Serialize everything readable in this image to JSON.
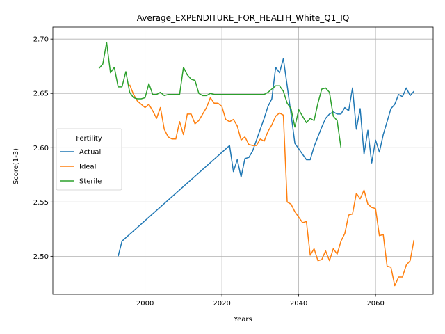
{
  "chart_data": {
    "type": "line",
    "title": "Average_EXPENDITURE_FOR_HEALTH_White_Q1_IQ",
    "xlabel": "Years",
    "ylabel": "Score(1-3)",
    "xlim": [
      1976,
      2075
    ],
    "ylim": [
      2.465,
      2.711
    ],
    "xticks": [
      2000,
      2020,
      2040,
      2060
    ],
    "yticks": [
      2.5,
      2.55,
      2.6,
      2.65,
      2.7
    ],
    "grid": true,
    "legend": {
      "title": "Fertility",
      "placement": "center-left"
    },
    "series": [
      {
        "name": "Actual",
        "color": "#1f77b4",
        "x": [
          1993,
          1994,
          2022,
          2023,
          2024,
          2025,
          2026,
          2027,
          2028,
          2029,
          2030,
          2031,
          2032,
          2033,
          2034,
          2035,
          2036,
          2037,
          2038,
          2039,
          2040,
          2041,
          2042,
          2043,
          2044,
          2045,
          2046,
          2047,
          2048,
          2049,
          2050,
          2051,
          2052,
          2053,
          2054,
          2055,
          2056,
          2057,
          2058,
          2059,
          2060,
          2061,
          2062,
          2063,
          2064,
          2065,
          2066,
          2067,
          2068,
          2069,
          2070
        ],
        "y": [
          2.5,
          2.514,
          2.602,
          2.578,
          2.589,
          2.573,
          2.59,
          2.591,
          2.597,
          2.607,
          2.617,
          2.627,
          2.638,
          2.645,
          2.674,
          2.669,
          2.682,
          2.657,
          2.631,
          2.604,
          2.599,
          2.594,
          2.589,
          2.589,
          2.601,
          2.61,
          2.619,
          2.627,
          2.631,
          2.633,
          2.631,
          2.631,
          2.637,
          2.634,
          2.655,
          2.617,
          2.636,
          2.594,
          2.616,
          2.586,
          2.607,
          2.596,
          2.612,
          2.624,
          2.636,
          2.64,
          2.649,
          2.647,
          2.655,
          2.648,
          2.652
        ]
      },
      {
        "name": "Ideal",
        "color": "#ff7f0e",
        "x": [
          1996,
          1997,
          1998,
          1999,
          2000,
          2001,
          2002,
          2003,
          2004,
          2005,
          2006,
          2007,
          2008,
          2009,
          2010,
          2011,
          2012,
          2013,
          2014,
          2015,
          2016,
          2017,
          2018,
          2019,
          2020,
          2021,
          2022,
          2023,
          2024,
          2025,
          2026,
          2027,
          2028,
          2029,
          2030,
          2031,
          2032,
          2033,
          2034,
          2035,
          2036,
          2037,
          2038,
          2039,
          2040,
          2041,
          2042,
          2043,
          2044,
          2045,
          2046,
          2047,
          2048,
          2049,
          2050,
          2051,
          2052,
          2053,
          2054,
          2055,
          2056,
          2057,
          2058,
          2059,
          2060,
          2061,
          2062,
          2063,
          2064,
          2065,
          2066,
          2067,
          2068,
          2069,
          2070
        ],
        "y": [
          2.658,
          2.649,
          2.643,
          2.64,
          2.637,
          2.64,
          2.634,
          2.627,
          2.637,
          2.617,
          2.61,
          2.608,
          2.608,
          2.624,
          2.612,
          2.631,
          2.631,
          2.622,
          2.625,
          2.631,
          2.637,
          2.646,
          2.641,
          2.641,
          2.638,
          2.626,
          2.624,
          2.626,
          2.62,
          2.607,
          2.61,
          2.603,
          2.602,
          2.602,
          2.608,
          2.606,
          2.615,
          2.621,
          2.629,
          2.632,
          2.63,
          2.55,
          2.548,
          2.541,
          2.536,
          2.531,
          2.532,
          2.501,
          2.507,
          2.496,
          2.497,
          2.505,
          2.496,
          2.507,
          2.502,
          2.514,
          2.521,
          2.538,
          2.539,
          2.558,
          2.553,
          2.561,
          2.548,
          2.545,
          2.544,
          2.519,
          2.52,
          2.491,
          2.49,
          2.473,
          2.481,
          2.481,
          2.492,
          2.496,
          2.515
        ]
      },
      {
        "name": "Sterile",
        "color": "#2ca02c",
        "x": [
          1988,
          1989,
          1990,
          1991,
          1992,
          1993,
          1994,
          1995,
          1996,
          1997,
          1998,
          1999,
          2000,
          2001,
          2002,
          2003,
          2004,
          2005,
          2006,
          2007,
          2008,
          2009,
          2010,
          2011,
          2012,
          2013,
          2014,
          2015,
          2016,
          2017,
          2018,
          2019,
          2020,
          2021,
          2022,
          2023,
          2024,
          2025,
          2026,
          2027,
          2028,
          2029,
          2030,
          2031,
          2032,
          2033,
          2034,
          2035,
          2036,
          2037,
          2038,
          2039,
          2040,
          2041,
          2042,
          2043,
          2044,
          2045,
          2046,
          2047,
          2048,
          2049,
          2050,
          2051
        ],
        "y": [
          2.673,
          2.677,
          2.697,
          2.669,
          2.674,
          2.656,
          2.656,
          2.67,
          2.651,
          2.646,
          2.645,
          2.645,
          2.646,
          2.659,
          2.649,
          2.649,
          2.651,
          2.648,
          2.649,
          2.649,
          2.649,
          2.649,
          2.674,
          2.667,
          2.663,
          2.662,
          2.65,
          2.648,
          2.648,
          2.65,
          2.649,
          2.649,
          2.649,
          2.649,
          2.649,
          2.649,
          2.649,
          2.649,
          2.649,
          2.649,
          2.649,
          2.649,
          2.649,
          2.649,
          2.651,
          2.654,
          2.657,
          2.657,
          2.652,
          2.641,
          2.636,
          2.619,
          2.635,
          2.629,
          2.623,
          2.627,
          2.625,
          2.641,
          2.654,
          2.655,
          2.651,
          2.629,
          2.625,
          2.6
        ]
      }
    ]
  }
}
